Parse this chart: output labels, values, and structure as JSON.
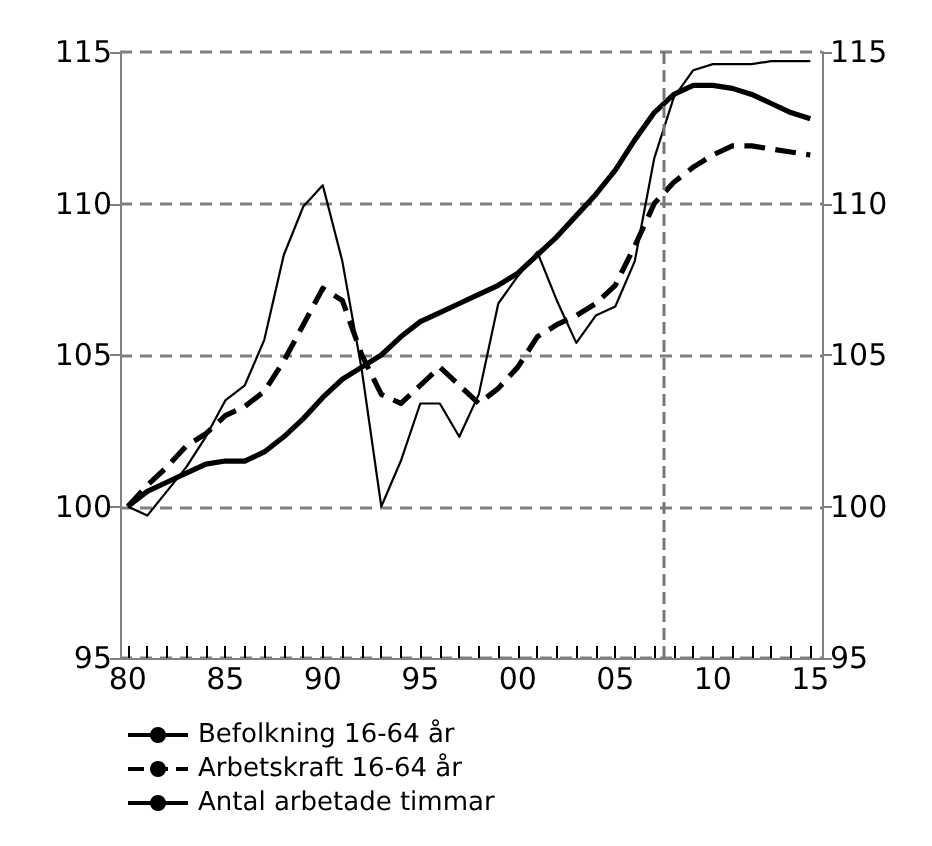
{
  "chart_data": {
    "type": "line",
    "x": [
      1980,
      1981,
      1982,
      1983,
      1984,
      1985,
      1986,
      1987,
      1988,
      1989,
      1990,
      1991,
      1992,
      1993,
      1994,
      1995,
      1996,
      1997,
      1998,
      1999,
      2000,
      2001,
      2002,
      2003,
      2004,
      2005,
      2006,
      2007,
      2008,
      2009,
      2010,
      2011,
      2012,
      2013,
      2014,
      2015
    ],
    "series": [
      {
        "name": "Befolkning 16-64 år",
        "color": "#000000",
        "line_style": "solid",
        "values": [
          100,
          100.5,
          100.8,
          101.1,
          101.4,
          101.5,
          101.5,
          101.8,
          102.3,
          102.9,
          103.6,
          104.2,
          104.6,
          105.0,
          105.6,
          106.1,
          106.4,
          106.7,
          107.0,
          107.3,
          107.7,
          108.3,
          108.9,
          109.6,
          110.3,
          111.1,
          112.1,
          113.0,
          113.6,
          113.9,
          113.9,
          113.8,
          113.6,
          113.3,
          113.0,
          112.8
        ]
      },
      {
        "name": "Arbetskraft 16-64 år",
        "color": "#000000",
        "line_style": "dashed",
        "values": [
          100,
          100.7,
          101.3,
          102.0,
          102.4,
          103.0,
          103.3,
          103.8,
          104.8,
          106.0,
          107.2,
          106.8,
          105.0,
          103.7,
          103.4,
          104.0,
          104.6,
          104.0,
          103.4,
          103.9,
          104.6,
          105.6,
          106.0,
          106.3,
          106.7,
          107.3,
          108.6,
          110.0,
          110.7,
          111.2,
          111.6,
          111.9,
          111.9,
          111.8,
          111.7,
          111.6
        ]
      },
      {
        "name": "Antal arbetade timmar",
        "color": "#000000",
        "line_style": "solid",
        "values": [
          100,
          99.7,
          100.5,
          101.3,
          102.3,
          103.5,
          104.0,
          105.5,
          108.3,
          109.9,
          110.6,
          108.1,
          104.5,
          100.0,
          101.5,
          103.4,
          103.4,
          102.3,
          103.7,
          106.7,
          107.6,
          108.4,
          106.8,
          105.4,
          106.3,
          106.6,
          108.1,
          111.5,
          113.5,
          114.4,
          114.6,
          114.6,
          114.6,
          114.7,
          114.7,
          114.7
        ]
      }
    ],
    "xlim": [
      1979.6,
      2015.6
    ],
    "xticks": [
      {
        "value": 1980,
        "label": "80"
      },
      {
        "value": 1981,
        "label": null
      },
      {
        "value": 1982,
        "label": null
      },
      {
        "value": 1983,
        "label": null
      },
      {
        "value": 1984,
        "label": null
      },
      {
        "value": 1985,
        "label": "85"
      },
      {
        "value": 1986,
        "label": null
      },
      {
        "value": 1987,
        "label": null
      },
      {
        "value": 1988,
        "label": null
      },
      {
        "value": 1989,
        "label": null
      },
      {
        "value": 1990,
        "label": "90"
      },
      {
        "value": 1991,
        "label": null
      },
      {
        "value": 1992,
        "label": null
      },
      {
        "value": 1993,
        "label": null
      },
      {
        "value": 1994,
        "label": null
      },
      {
        "value": 1995,
        "label": "95"
      },
      {
        "value": 1996,
        "label": null
      },
      {
        "value": 1997,
        "label": null
      },
      {
        "value": 1998,
        "label": null
      },
      {
        "value": 1999,
        "label": null
      },
      {
        "value": 2000,
        "label": "00"
      },
      {
        "value": 2001,
        "label": null
      },
      {
        "value": 2002,
        "label": null
      },
      {
        "value": 2003,
        "label": null
      },
      {
        "value": 2004,
        "label": null
      },
      {
        "value": 2005,
        "label": "05"
      },
      {
        "value": 2006,
        "label": null
      },
      {
        "value": 2007,
        "label": null
      },
      {
        "value": 2008,
        "label": null
      },
      {
        "value": 2009,
        "label": null
      },
      {
        "value": 2010,
        "label": "10"
      },
      {
        "value": 2011,
        "label": null
      },
      {
        "value": 2012,
        "label": null
      },
      {
        "value": 2013,
        "label": null
      },
      {
        "value": 2014,
        "label": null
      },
      {
        "value": 2015,
        "label": "15"
      }
    ],
    "ylim": [
      95,
      115
    ],
    "yticks": [
      95,
      100,
      105,
      110,
      115
    ],
    "y2lim": [
      95,
      115
    ],
    "y2ticks": [
      95,
      100,
      105,
      110,
      115
    ],
    "grid": "y",
    "ref_lines": [
      {
        "axis": "x",
        "value": 2007.5,
        "color": "#777777",
        "line_style": "dashed"
      }
    ],
    "legend": "bottom left",
    "marker": "none"
  }
}
